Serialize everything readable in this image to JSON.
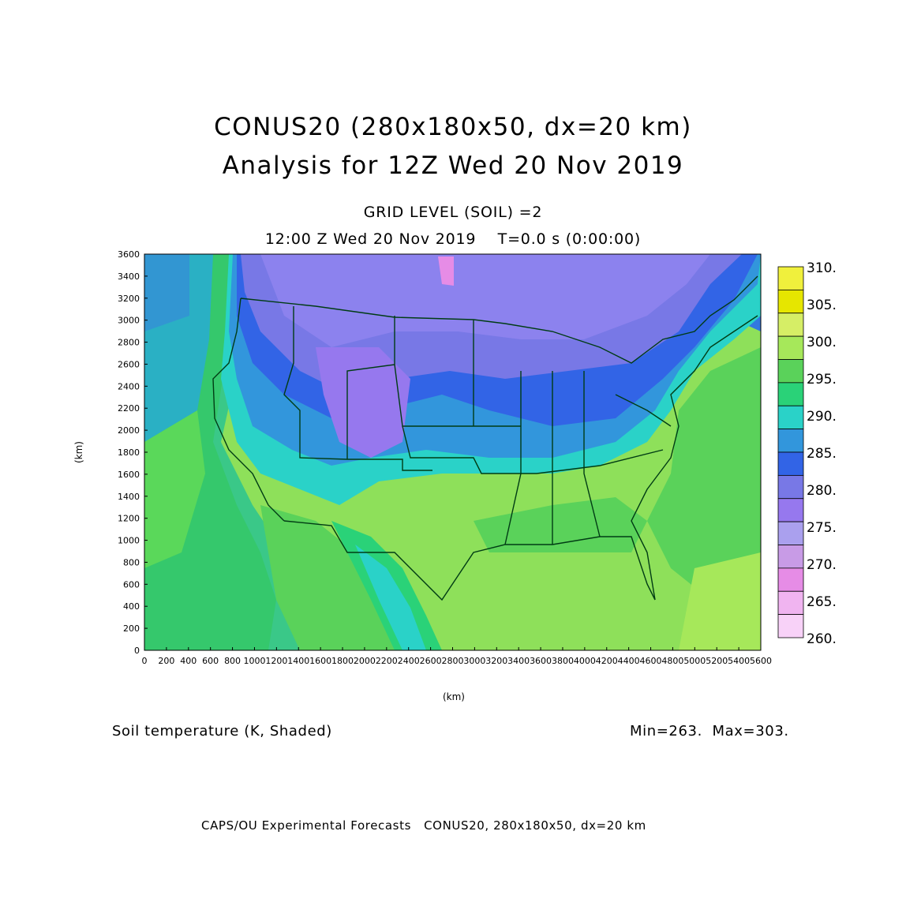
{
  "title_line1": "CONUS20 (280x180x50, dx=20 km)",
  "title_line2": "Analysis for 12Z Wed 20 Nov 2019",
  "grid_level": "GRID LEVEL (SOIL) =2",
  "time_line": "12:00 Z Wed 20 Nov 2019    T=0.0 s (0:00:00)",
  "y_axis_label": "(km)",
  "x_axis_label": "(km)",
  "x_ticks": [
    "0",
    "200",
    "400",
    "600",
    "800",
    "1000",
    "1200",
    "1400",
    "1600",
    "1800",
    "2000",
    "2200",
    "2400",
    "2600",
    "2800",
    "3000",
    "3200",
    "3400",
    "3600",
    "3800",
    "4000",
    "4200",
    "4400",
    "4600",
    "4800",
    "5000",
    "5200",
    "5400",
    "5600"
  ],
  "y_ticks": [
    "0",
    "200",
    "400",
    "600",
    "800",
    "1000",
    "1200",
    "1400",
    "1600",
    "1800",
    "2000",
    "2200",
    "2400",
    "2600",
    "2800",
    "3000",
    "3200",
    "3400",
    "3600"
  ],
  "field_caption": "Soil temperature (K, Shaded)",
  "min_max": "Min=263.  Max=303.",
  "footer": "CAPS/OU Experimental Forecasts   CONUS20, 280x180x50, dx=20 km",
  "colorbar": {
    "labels": [
      "310.",
      "305.",
      "300.",
      "295.",
      "290.",
      "285.",
      "280.",
      "275.",
      "270.",
      "265.",
      "260."
    ],
    "colors": [
      "#f0f03c",
      "#e6e600",
      "#d6ee66",
      "#a6e85a",
      "#5ad25a",
      "#2ad278",
      "#2ad2c8",
      "#3296dc",
      "#3264e6",
      "#7878e6",
      "#9678ee",
      "#aaa0ee",
      "#c89be6",
      "#e68ce6",
      "#f0b4f0",
      "#f8d2f8"
    ]
  },
  "map_colors": {
    "ocean_west": "#3fb69c",
    "ocean_east": "#3fd070",
    "south_land": "#9ee65a",
    "gulf": "#8fe052",
    "plains": "#8c82ee",
    "north": "#7f80ee",
    "mid": "#3278e0",
    "boundary": "#003c14"
  }
}
